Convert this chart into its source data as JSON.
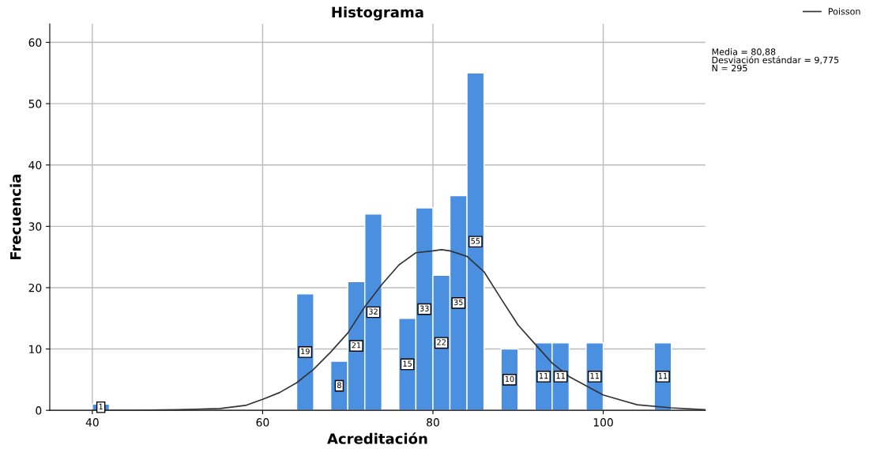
{
  "chart_data": {
    "type": "histogram",
    "title": "Histograma",
    "xlabel": "Acreditación",
    "ylabel": "Frecuencia",
    "bins": [
      40,
      42,
      44,
      46,
      48,
      50,
      52,
      54,
      56,
      58,
      60,
      62,
      64,
      66,
      68,
      70,
      72,
      74,
      76,
      78,
      80,
      82,
      84,
      86,
      88,
      90,
      92,
      94,
      96,
      98,
      100,
      102,
      104,
      106,
      108
    ],
    "values": [
      1,
      0,
      0,
      0,
      0,
      0,
      0,
      0,
      0,
      0,
      0,
      0,
      19,
      0,
      8,
      21,
      32,
      0,
      15,
      33,
      22,
      35,
      55,
      0,
      10,
      0,
      11,
      11,
      0,
      11,
      0,
      0,
      0,
      11
    ],
    "value_labels": [
      "1",
      null,
      null,
      null,
      null,
      null,
      null,
      null,
      null,
      null,
      null,
      null,
      "19",
      null,
      "8",
      "21",
      "32",
      null,
      "15",
      "33",
      "22",
      "35",
      "55",
      null,
      "10",
      null,
      "11",
      "11",
      null,
      "11",
      null,
      null,
      null,
      "11"
    ],
    "color": "#4a8fe0",
    "series": [
      {
        "type": "line",
        "name": "Poisson",
        "color": "#333333",
        "x": [
          40,
          45,
          50,
          55,
          58,
          60,
          62,
          64,
          66,
          68,
          70,
          72,
          74,
          76,
          78,
          80,
          81,
          82,
          84,
          86,
          88,
          90,
          92,
          94,
          96,
          100,
          104,
          108,
          112
        ],
        "values": [
          0,
          0,
          0.1,
          0.3,
          0.8,
          1.8,
          2.9,
          4.5,
          6.7,
          9.5,
          12.6,
          16.9,
          20.5,
          23.7,
          25.7,
          26.0,
          26.2,
          26.0,
          25.1,
          22.6,
          18.2,
          13.9,
          10.8,
          7.7,
          5.5,
          2.5,
          0.9,
          0.4,
          0.1
        ]
      }
    ],
    "annotations": [
      "Media = 80,88\nDesviación estándar = 9,775\nN = 295"
    ],
    "xlim": [
      35,
      112
    ],
    "xticks": [
      40,
      60,
      80,
      100
    ],
    "ylim": [
      0,
      63
    ],
    "yticks": [
      0,
      10,
      20,
      30,
      40,
      50,
      60
    ],
    "grid": true,
    "legend": "top right"
  }
}
